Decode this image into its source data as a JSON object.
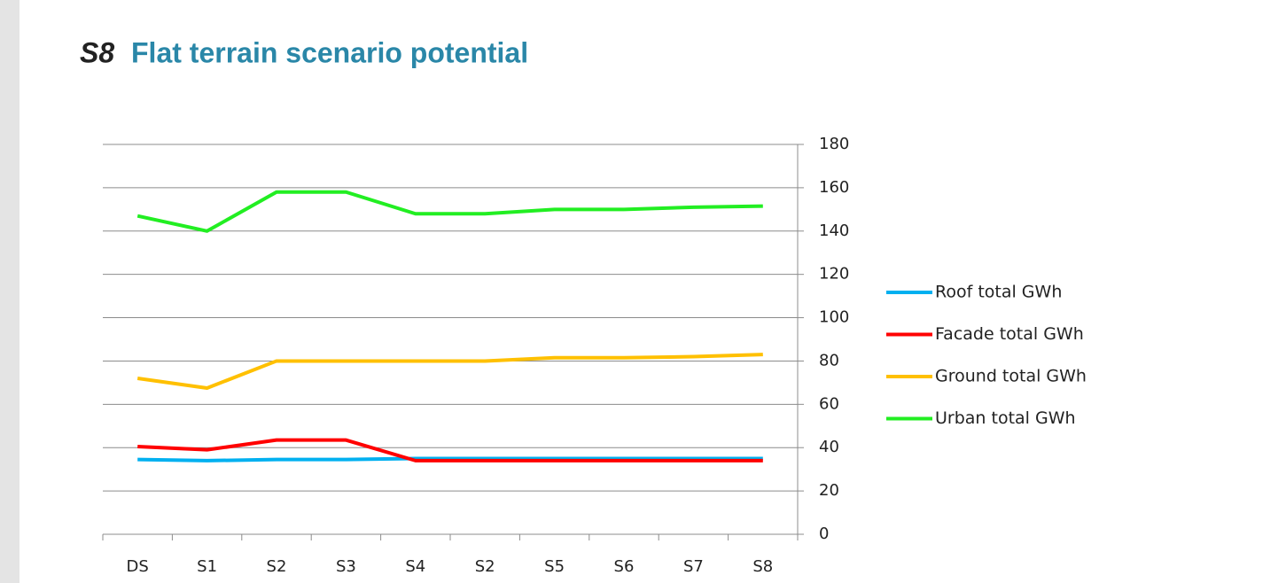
{
  "header": {
    "tag": "S8",
    "title": "Flat terrain scenario potential"
  },
  "chart_data": {
    "type": "line",
    "categories": [
      "DS",
      "S1",
      "S2",
      "S3",
      "S4",
      "S2",
      "S5",
      "S6",
      "S7",
      "S8"
    ],
    "series": [
      {
        "name": "Roof total GWh",
        "color": "#00b0f0",
        "values": [
          34.5,
          34,
          34.5,
          34.5,
          35,
          35,
          35,
          35,
          35,
          35
        ]
      },
      {
        "name": "Facade total GWh",
        "color": "#ff0000",
        "values": [
          40.5,
          39,
          43.5,
          43.5,
          34,
          34,
          34,
          34,
          34,
          34
        ]
      },
      {
        "name": "Ground total GWh",
        "color": "#ffc000",
        "values": [
          72,
          67.5,
          80,
          80,
          80,
          80,
          81.5,
          81.5,
          82,
          83
        ]
      },
      {
        "name": "Urban total GWh",
        "color": "#22ee22",
        "values": [
          147,
          140,
          158,
          158,
          148,
          148,
          150,
          150,
          151,
          151.5
        ]
      }
    ],
    "ylim": [
      0,
      180
    ],
    "yticks": [
      0,
      20,
      40,
      60,
      80,
      100,
      120,
      140,
      160,
      180
    ],
    "grid": true,
    "y_axis_side": "right",
    "legend": "right"
  }
}
